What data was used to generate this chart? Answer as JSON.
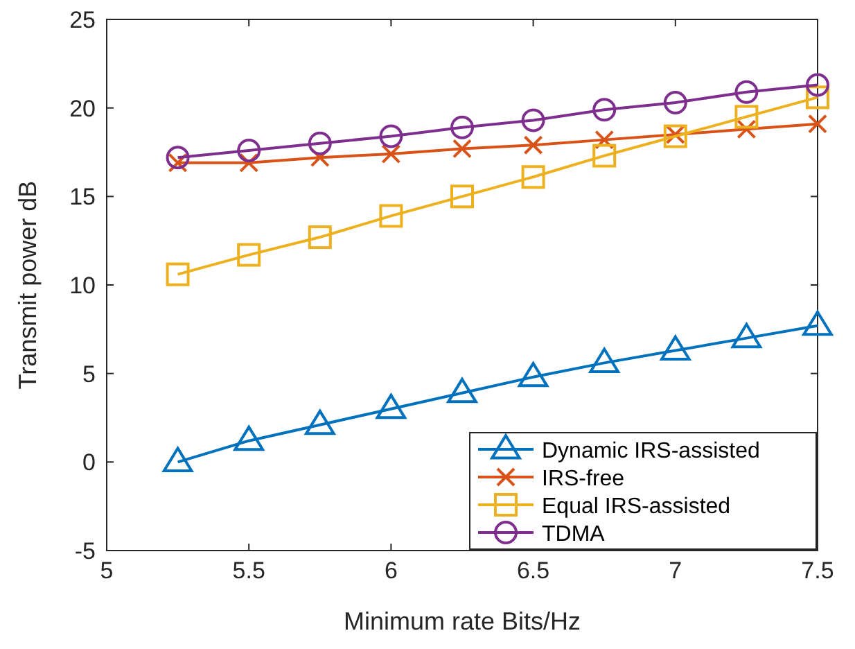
{
  "chart_data": {
    "type": "line",
    "xlabel": "Minimum rate Bits/Hz",
    "ylabel": "Transmit power dB",
    "x": [
      5.25,
      5.5,
      5.75,
      6,
      6.25,
      6.5,
      6.75,
      7,
      7.25,
      7.5
    ],
    "xlim": [
      5,
      7.5
    ],
    "xticks": [
      5,
      5.5,
      6,
      6.5,
      7,
      7.5
    ],
    "ylim": [
      -5,
      25
    ],
    "yticks": [
      -5,
      0,
      5,
      10,
      15,
      20,
      25
    ],
    "grid": false,
    "legend": "bottom right",
    "series": [
      {
        "name": "Dynamic IRS-assisted",
        "color": "#0072bd",
        "marker": "triangle",
        "values": [
          0,
          1.2,
          2.1,
          3.0,
          3.9,
          4.8,
          5.6,
          6.3,
          7.0,
          7.7
        ]
      },
      {
        "name": "IRS-free",
        "color": "#d95319",
        "marker": "cross",
        "values": [
          16.9,
          16.9,
          17.2,
          17.4,
          17.7,
          17.9,
          18.2,
          18.5,
          18.8,
          19.1
        ]
      },
      {
        "name": "Equal IRS-assisted",
        "color": "#edb120",
        "marker": "square",
        "values": [
          10.6,
          11.7,
          12.7,
          13.9,
          15.0,
          16.1,
          17.3,
          18.4,
          19.5,
          20.6
        ]
      },
      {
        "name": "TDMA",
        "color": "#7e2f8e",
        "marker": "circle",
        "values": [
          17.2,
          17.6,
          18.0,
          18.4,
          18.9,
          19.3,
          19.9,
          20.3,
          20.9,
          21.3
        ]
      }
    ]
  }
}
